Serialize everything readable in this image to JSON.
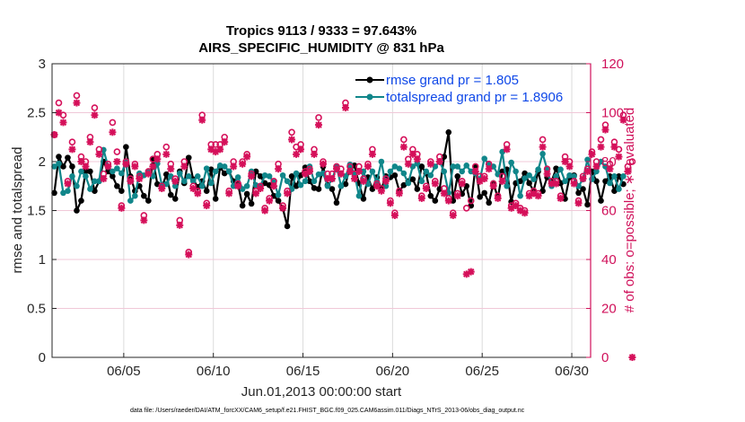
{
  "chart_data": {
    "type": "line",
    "title": "Tropics 9113 / 9333 = 97.643%",
    "subtitle": "AIRS_SPECIFIC_HUMIDITY @ 831 hPa",
    "xlabel": "Jun.01,2013 00:00:00 start",
    "ylabel": "rmse and totalspread",
    "y2label": "# of obs: o=possible; ∗=evaluated",
    "footer": "data file: /Users/raeder/DAI/ATM_forcXX/CAM6_setup/f.e21.FHIST_BGC.f09_025.CAM6assim.011/Diags_NTrS_2013-06/obs_diag_output.nc",
    "xlim_days": [
      0,
      30.05
    ],
    "ylim": [
      0,
      3
    ],
    "y2lim": [
      0,
      120
    ],
    "x_ticks": [
      {
        "day": 4,
        "label": "06/05"
      },
      {
        "day": 9,
        "label": "06/10"
      },
      {
        "day": 14,
        "label": "06/15"
      },
      {
        "day": 19,
        "label": "06/20"
      },
      {
        "day": 24,
        "label": "06/25"
      },
      {
        "day": 29,
        "label": "06/30"
      }
    ],
    "y_ticks": [
      "0",
      "0.5",
      "1",
      "1.5",
      "2",
      "2.5",
      "3"
    ],
    "y_tick_values": [
      0,
      0.5,
      1,
      1.5,
      2,
      2.5,
      3
    ],
    "y2_ticks": [
      "0",
      "20",
      "40",
      "60",
      "80",
      "100",
      "120"
    ],
    "y2_tick_values": [
      0,
      20,
      40,
      60,
      80,
      100,
      120
    ],
    "legend": [
      {
        "label": "rmse grand pr = 1.805",
        "color": "#000000"
      },
      {
        "label": "totalspread grand pr = 1.8906",
        "color": "#0f8a8a"
      }
    ],
    "colors": {
      "rmse": "#000000",
      "spread": "#10868a",
      "obs": "#d5105a",
      "legend_text": "#0f48e8",
      "grid": "#f0c8d8"
    },
    "series": [
      {
        "name": "rmse",
        "values": [
          1.68,
          2.05,
          1.95,
          2.04,
          1.95,
          1.5,
          1.6,
          1.9,
          1.9,
          1.7,
          1.8,
          2.0,
          1.9,
          1.85,
          1.75,
          1.7,
          2.15,
          1.85,
          1.7,
          1.75,
          1.65,
          1.6,
          2.03,
          1.77,
          1.73,
          1.87,
          1.66,
          1.62,
          1.9,
          1.78,
          2.04,
          1.82,
          1.74,
          1.8,
          1.7,
          1.92,
          1.62,
          1.94,
          1.88,
          1.9,
          1.8,
          1.77,
          1.55,
          1.67,
          1.57,
          1.9,
          1.85,
          1.78,
          1.76,
          1.65,
          1.6,
          1.52,
          1.34,
          1.85,
          1.75,
          1.86,
          1.94,
          1.8,
          1.73,
          1.72,
          1.95,
          1.76,
          1.72,
          1.58,
          1.75,
          1.77,
          1.95,
          1.96,
          1.78,
          1.62,
          1.84,
          1.72,
          1.84,
          1.72,
          1.85,
          1.84,
          1.86,
          1.7,
          1.76,
          1.8,
          1.82,
          1.72,
          1.95,
          1.88,
          1.65,
          1.6,
          1.72,
          2.05,
          2.3,
          1.6,
          1.85,
          1.67,
          1.75,
          1.55,
          1.95,
          1.64,
          1.68,
          1.58,
          1.78,
          1.63,
          1.9,
          1.92,
          1.59,
          1.78,
          1.8,
          1.88,
          1.78,
          1.7,
          1.9,
          1.7,
          1.84,
          1.8,
          1.93,
          1.78,
          1.62,
          1.84,
          1.86,
          1.68,
          1.72,
          1.56,
          1.9,
          1.8,
          1.6,
          1.8,
          1.85,
          1.7,
          1.85,
          1.77
        ]
      },
      {
        "name": "totalspread",
        "values": [
          1.95,
          1.98,
          1.68,
          1.7,
          1.85,
          1.75,
          1.9,
          1.85,
          1.72,
          1.8,
          1.8,
          2.12,
          1.95,
          1.9,
          1.93,
          1.88,
          2.0,
          1.6,
          1.65,
          1.88,
          1.86,
          1.9,
          1.85,
          1.98,
          1.76,
          1.77,
          1.85,
          1.75,
          1.88,
          1.8,
          1.85,
          1.8,
          1.85,
          1.75,
          1.93,
          1.78,
          1.9,
          1.96,
          1.95,
          1.9,
          1.75,
          1.84,
          1.72,
          1.75,
          1.9,
          1.76,
          1.75,
          1.86,
          1.85,
          1.79,
          1.66,
          1.86,
          1.8,
          1.72,
          1.88,
          1.76,
          1.8,
          1.95,
          1.8,
          1.87,
          1.88,
          1.75,
          1.82,
          1.95,
          1.75,
          1.85,
          1.97,
          1.88,
          1.65,
          1.9,
          1.77,
          1.9,
          1.8,
          2.0,
          1.75,
          1.9,
          1.95,
          1.93,
          1.88,
          1.78,
          1.95,
          1.98,
          1.8,
          1.9,
          1.86,
          1.95,
          2.0,
          1.9,
          1.68,
          1.95,
          1.95,
          1.9,
          1.96,
          1.9,
          1.88,
          1.82,
          2.03,
          1.97,
          1.95,
          1.87,
          2.1,
          1.75,
          1.99,
          1.9,
          1.65,
          1.83,
          1.86,
          1.82,
          1.92,
          2.08,
          1.92,
          1.75,
          1.85,
          1.92,
          1.8,
          1.86,
          1.85,
          1.75,
          1.82,
          2.02,
          1.82,
          1.9,
          2.0,
          1.95,
          1.78,
          1.85,
          1.72,
          1.85
        ]
      },
      {
        "name": "possible",
        "axis": "right",
        "values": [
          91,
          104,
          99,
          72,
          88,
          107,
          82,
          80,
          90,
          102,
          85,
          75,
          79,
          96,
          84,
          62,
          80,
          73,
          79,
          74,
          58,
          76,
          81,
          83,
          70,
          86,
          79,
          73,
          56,
          80,
          43,
          70,
          68,
          99,
          63,
          87,
          87,
          87,
          90,
          68,
          80,
          71,
          80,
          83,
          75,
          68,
          70,
          61,
          65,
          72,
          79,
          62,
          68,
          92,
          86,
          87,
          76,
          77,
          85,
          98,
          80,
          75,
          75,
          78,
          77,
          104,
          78,
          75,
          78,
          73,
          79,
          85,
          71,
          69,
          73,
          64,
          59,
          68,
          89,
          81,
          85,
          83,
          66,
          70,
          80,
          72,
          82,
          69,
          65,
          59,
          67,
          72,
          61,
          64,
          78,
          74,
          74,
          79,
          71,
          66,
          74,
          87,
          62,
          63,
          61,
          60,
          67,
          68,
          67,
          89,
          77,
          72,
          72,
          66,
          82,
          80,
          72,
          64,
          74,
          77,
          84,
          80,
          89,
          95,
          79,
          88,
          85,
          99,
          78,
          80
        ]
      },
      {
        "name": "evaluated",
        "axis": "right",
        "values": [
          91,
          100,
          96,
          71,
          85,
          104,
          80,
          78,
          88,
          99,
          83,
          73,
          78,
          92,
          80,
          61,
          79,
          72,
          78,
          73,
          56,
          75,
          78,
          81,
          69,
          83,
          77,
          72,
          54,
          78,
          42,
          69,
          67,
          97,
          62,
          85,
          84,
          85,
          88,
          67,
          78,
          70,
          79,
          82,
          74,
          67,
          69,
          60,
          64,
          70,
          77,
          61,
          67,
          89,
          83,
          85,
          75,
          76,
          83,
          95,
          79,
          73,
          73,
          77,
          75,
          102,
          76,
          73,
          76,
          72,
          78,
          83,
          70,
          68,
          72,
          63,
          58,
          67,
          86,
          79,
          83,
          81,
          65,
          69,
          79,
          71,
          80,
          67,
          64,
          58,
          66,
          71,
          34,
          35,
          76,
          72,
          73,
          77,
          70,
          65,
          72,
          85,
          61,
          62,
          60,
          59,
          66,
          67,
          66,
          86,
          75,
          71,
          71,
          65,
          80,
          78,
          71,
          63,
          73,
          76,
          83,
          78,
          86,
          93,
          77,
          86,
          82,
          97,
          76,
          0
        ]
      }
    ]
  }
}
